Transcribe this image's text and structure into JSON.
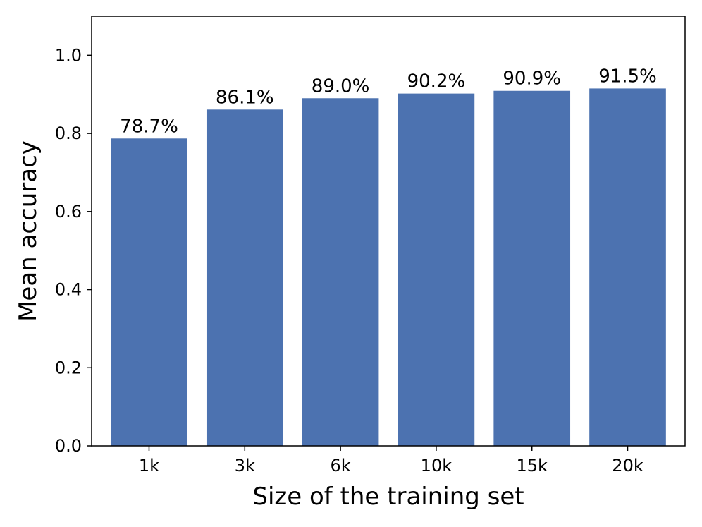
{
  "chart_data": {
    "type": "bar",
    "categories": [
      "1k",
      "3k",
      "6k",
      "10k",
      "15k",
      "20k"
    ],
    "values": [
      0.787,
      0.861,
      0.89,
      0.902,
      0.909,
      0.915
    ],
    "data_labels": [
      "78.7%",
      "86.1%",
      "89.0%",
      "90.2%",
      "90.9%",
      "91.5%"
    ],
    "title": "",
    "xlabel": "Size of the training set",
    "ylabel": "Mean accuracy",
    "ylim": [
      0,
      1.1
    ],
    "yticks": [
      0.0,
      0.2,
      0.4,
      0.6,
      0.8,
      1.0
    ],
    "ytick_labels": [
      "0.0",
      "0.2",
      "0.4",
      "0.6",
      "0.8",
      "1.0"
    ],
    "grid": false,
    "bar_color": "#4c72b0"
  }
}
